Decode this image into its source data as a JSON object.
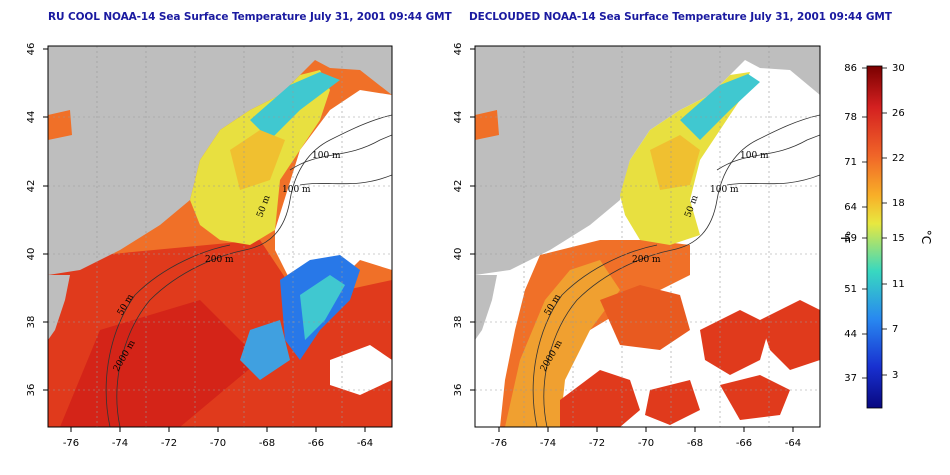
{
  "maps": [
    {
      "id": "left",
      "title": "RU COOL NOAA-14 Sea Surface Temperature July 31, 2001 09:44 GMT",
      "lon_ticks": [
        "-76",
        "-74",
        "-72",
        "-70",
        "-68",
        "-66",
        "-64"
      ],
      "lat_ticks": [
        "36",
        "38",
        "40",
        "42",
        "44",
        "46"
      ],
      "isobath_labels": [
        "100 m",
        "100 m",
        "50 m",
        "200 m",
        "50 m",
        "2000 m"
      ]
    },
    {
      "id": "right",
      "title": "DECLOUDED NOAA-14 Sea Surface Temperature July 31, 2001 09:44 GMT",
      "lon_ticks": [
        "-76",
        "-74",
        "-72",
        "-70",
        "-68",
        "-66",
        "-64"
      ],
      "lat_ticks": [
        "36",
        "38",
        "40",
        "42",
        "44",
        "46"
      ],
      "isobath_labels": [
        "100 m",
        "100 m",
        "50 m",
        "200 m",
        "50 m",
        "2000 m"
      ]
    }
  ],
  "colorbar": {
    "fahrenheit_ticks": [
      "86",
      "78",
      "71",
      "64",
      "59",
      "51",
      "44",
      "37"
    ],
    "celsius_ticks": [
      "30",
      "26",
      "22",
      "18",
      "15",
      "11",
      "7",
      "3"
    ],
    "fahrenheit_unit": "°F",
    "celsius_unit": "°C",
    "colors": [
      "#7a0000",
      "#d42020",
      "#f06428",
      "#f8b028",
      "#e8e840",
      "#38d8c0",
      "#2888f0",
      "#1830d0",
      "#080880"
    ]
  },
  "colors": {
    "land": "#bebebe",
    "cloud": "#ffffff",
    "title": "#1a1aa0"
  }
}
